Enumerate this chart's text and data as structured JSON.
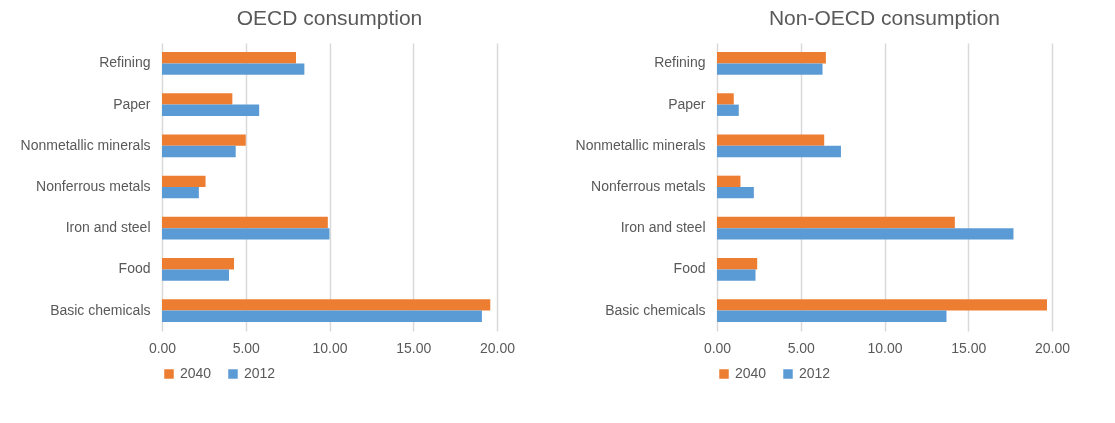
{
  "chart_data": [
    {
      "type": "bar",
      "orientation": "horizontal",
      "title": "OECD consumption",
      "categories": [
        "Refining",
        "Paper",
        "Nonmetallic minerals",
        "Nonferrous metals",
        "Iron and steel",
        "Food",
        "Basic chemicals"
      ],
      "series": [
        {
          "name": "2040",
          "color": "#ed7d31",
          "values": [
            8.0,
            4.2,
            5.0,
            2.6,
            9.9,
            4.3,
            19.6
          ]
        },
        {
          "name": "2012",
          "color": "#5b9bd5",
          "values": [
            8.5,
            5.8,
            4.4,
            2.2,
            10.0,
            4.0,
            19.1
          ]
        }
      ],
      "xlim": [
        0,
        20
      ],
      "xticks": [
        {
          "value": 0,
          "label": "0.00"
        },
        {
          "value": 5,
          "label": "5.00"
        },
        {
          "value": 10,
          "label": "10.00"
        },
        {
          "value": 15,
          "label": "15.00"
        },
        {
          "value": 20,
          "label": "20.00"
        }
      ],
      "grid": "x",
      "legend": "bottom"
    },
    {
      "type": "bar",
      "orientation": "horizontal",
      "title": "Non-OECD consumption",
      "categories": [
        "Refining",
        "Paper",
        "Nonmetallic minerals",
        "Nonferrous metals",
        "Iron and steel",
        "Food",
        "Basic chemicals"
      ],
      "series": [
        {
          "name": "2040",
          "color": "#ed7d31",
          "values": [
            6.5,
            1.0,
            6.4,
            1.4,
            14.2,
            2.4,
            19.7
          ]
        },
        {
          "name": "2012",
          "color": "#5b9bd5",
          "values": [
            6.3,
            1.3,
            7.4,
            2.2,
            17.7,
            2.3,
            13.7
          ]
        }
      ],
      "xlim": [
        0,
        20
      ],
      "xticks": [
        {
          "value": 0,
          "label": "0.00"
        },
        {
          "value": 5,
          "label": "5.00"
        },
        {
          "value": 10,
          "label": "10.00"
        },
        {
          "value": 15,
          "label": "15.00"
        },
        {
          "value": 20,
          "label": "20.00"
        }
      ],
      "grid": "x",
      "legend": "bottom"
    }
  ]
}
